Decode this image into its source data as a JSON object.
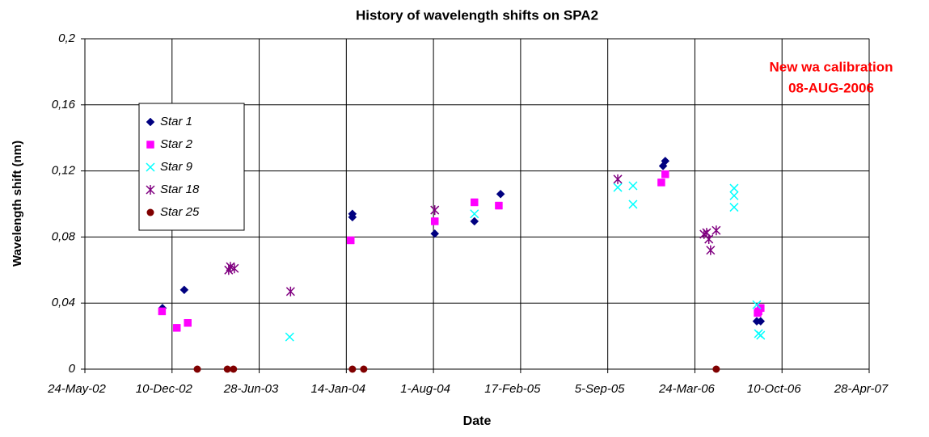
{
  "chart_data": {
    "type": "scatter",
    "title": "History of wavelength shifts on SPA2",
    "x_label": "Date",
    "y_label": "Wavelength shift (nm)",
    "annotation": [
      "New wa calibration",
      "08-AUG-2006"
    ],
    "annotation_color": "#ff0000",
    "xlim": [
      "2002-05-24",
      "2007-04-28"
    ],
    "xticks": [
      {
        "value": "2002-05-24",
        "label": "24-May-02"
      },
      {
        "value": "2002-12-10",
        "label": "10-Dec-02"
      },
      {
        "value": "2003-06-28",
        "label": "28-Jun-03"
      },
      {
        "value": "2004-01-14",
        "label": "14-Jan-04"
      },
      {
        "value": "2004-08-01",
        "label": "1-Aug-04"
      },
      {
        "value": "2005-02-17",
        "label": "17-Feb-05"
      },
      {
        "value": "2005-09-05",
        "label": "5-Sep-05"
      },
      {
        "value": "2006-03-24",
        "label": "24-Mar-06"
      },
      {
        "value": "2006-10-10",
        "label": "10-Oct-06"
      },
      {
        "value": "2007-04-28",
        "label": "28-Apr-07"
      }
    ],
    "ylim": [
      0,
      0.2
    ],
    "yticks": [
      0,
      {
        "value": 0.04,
        "label": "0,04"
      },
      {
        "value": 0.08,
        "label": "0,08"
      },
      {
        "value": 0.12,
        "label": "0,12"
      },
      {
        "value": 0.16,
        "label": "0,16"
      },
      {
        "value": 0.2,
        "label": "0,2"
      }
    ],
    "grid": true,
    "series": [
      {
        "name": "Star 1",
        "color": "#000080",
        "marker": "diamond",
        "x": [
          "2002-11-18",
          "2003-01-07",
          "2004-01-28",
          "2004-01-28",
          "2004-08-04",
          "2004-11-03",
          "2005-01-02",
          "2006-01-10",
          "2006-01-15",
          "2006-08-13",
          "2006-08-22"
        ],
        "values": [
          0.037,
          0.048,
          0.092,
          0.094,
          0.082,
          0.0895,
          0.106,
          0.123,
          0.126,
          0.029,
          0.029
        ]
      },
      {
        "name": "Star 2",
        "color": "#ff00ff",
        "marker": "square",
        "x": [
          "2002-11-17",
          "2002-12-21",
          "2003-01-15",
          "2004-01-24",
          "2004-08-04",
          "2004-11-03",
          "2004-12-29",
          "2006-01-06",
          "2006-01-15",
          "2006-08-15",
          "2006-08-17",
          "2006-08-22"
        ],
        "values": [
          0.035,
          0.025,
          0.028,
          0.078,
          0.0895,
          0.101,
          0.099,
          0.113,
          0.118,
          0.034,
          0.035,
          0.037
        ]
      },
      {
        "name": "Star 9",
        "color": "#00ffff",
        "marker": "x",
        "x": [
          "2003-09-06",
          "2004-11-03",
          "2005-09-28",
          "2005-11-02",
          "2005-11-02",
          "2006-06-22",
          "2006-06-22",
          "2006-06-22",
          "2006-08-13",
          "2006-08-17",
          "2006-08-22"
        ],
        "values": [
          0.0195,
          0.094,
          0.11,
          0.111,
          0.0998,
          0.1095,
          0.105,
          0.098,
          0.039,
          0.0215,
          0.0205
        ]
      },
      {
        "name": "Star 18",
        "color": "#800080",
        "marker": "asterisk",
        "x": [
          "2003-04-19",
          "2003-04-23",
          "2003-05-02",
          "2003-09-08",
          "2004-08-04",
          "2005-09-28",
          "2006-04-14",
          "2006-04-20",
          "2006-04-25",
          "2006-04-29",
          "2006-05-12"
        ],
        "values": [
          0.06,
          0.062,
          0.061,
          0.047,
          0.0963,
          0.115,
          0.0817,
          0.0826,
          0.0787,
          0.072,
          0.084
        ]
      },
      {
        "name": "Star 25",
        "color": "#800000",
        "marker": "circle",
        "x": [
          "2003-02-06",
          "2003-04-16",
          "2003-04-30",
          "2004-01-28",
          "2004-02-23",
          "2006-05-12"
        ],
        "values": [
          0,
          0,
          0,
          0,
          0,
          0
        ]
      }
    ]
  }
}
